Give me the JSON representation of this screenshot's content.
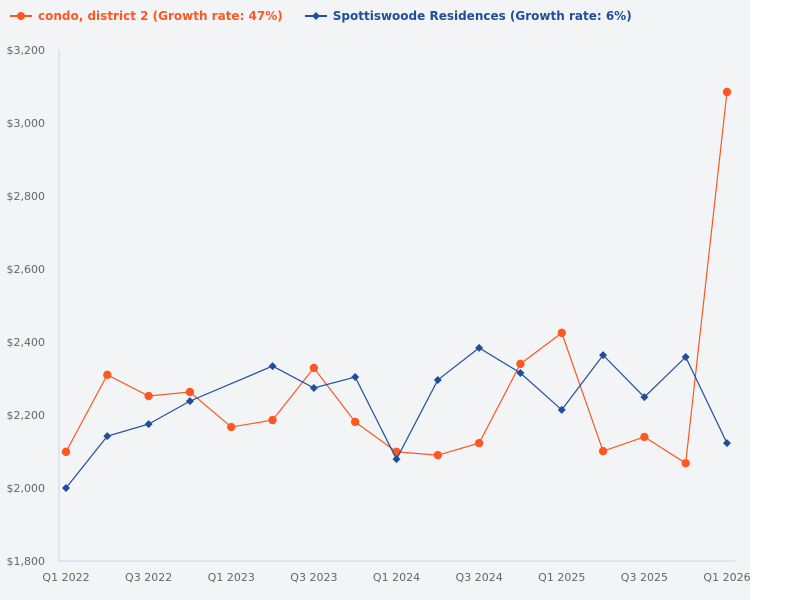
{
  "chart_data": {
    "type": "line",
    "categories": [
      "Q1 2022",
      "Q2 2022",
      "Q3 2022",
      "Q4 2022",
      "Q1 2023",
      "Q2 2023",
      "Q3 2023",
      "Q4 2023",
      "Q1 2024",
      "Q2 2024",
      "Q3 2024",
      "Q4 2024",
      "Q1 2025",
      "Q2 2025",
      "Q3 2025",
      "Q4 2025",
      "Q1 2026"
    ],
    "x_tick_labels": [
      "Q1 2022",
      "Q3 2022",
      "Q1 2023",
      "Q3 2023",
      "Q1 2024",
      "Q3 2024",
      "Q1 2025",
      "Q3 2025",
      "Q1 2026"
    ],
    "y_tick_labels": [
      "$1,800",
      "$2,000",
      "$2,200",
      "$2,400",
      "$2,600",
      "$2,800",
      "$3,000",
      "$3,200"
    ],
    "ylim": [
      1800,
      3200
    ],
    "grid": false,
    "legend_position": "top-left",
    "series": [
      {
        "name": "condo, district 2 (Growth rate: 47%)",
        "color": "#ff5722",
        "marker": "circle",
        "values": [
          2099,
          2310,
          2252,
          2263,
          2167,
          2186,
          2329,
          2181,
          2099,
          2090,
          2123,
          2340,
          2425,
          2101,
          2140,
          2068,
          3085
        ]
      },
      {
        "name": "Spottiswoode Residences (Growth rate: 6%)",
        "color": "#1f4e9c",
        "marker": "diamond",
        "values": [
          2000,
          2142,
          2175,
          2238,
          null,
          2334,
          2274,
          2304,
          2079,
          2296,
          2384,
          2315,
          2214,
          2364,
          2249,
          2359,
          2123
        ]
      }
    ]
  }
}
